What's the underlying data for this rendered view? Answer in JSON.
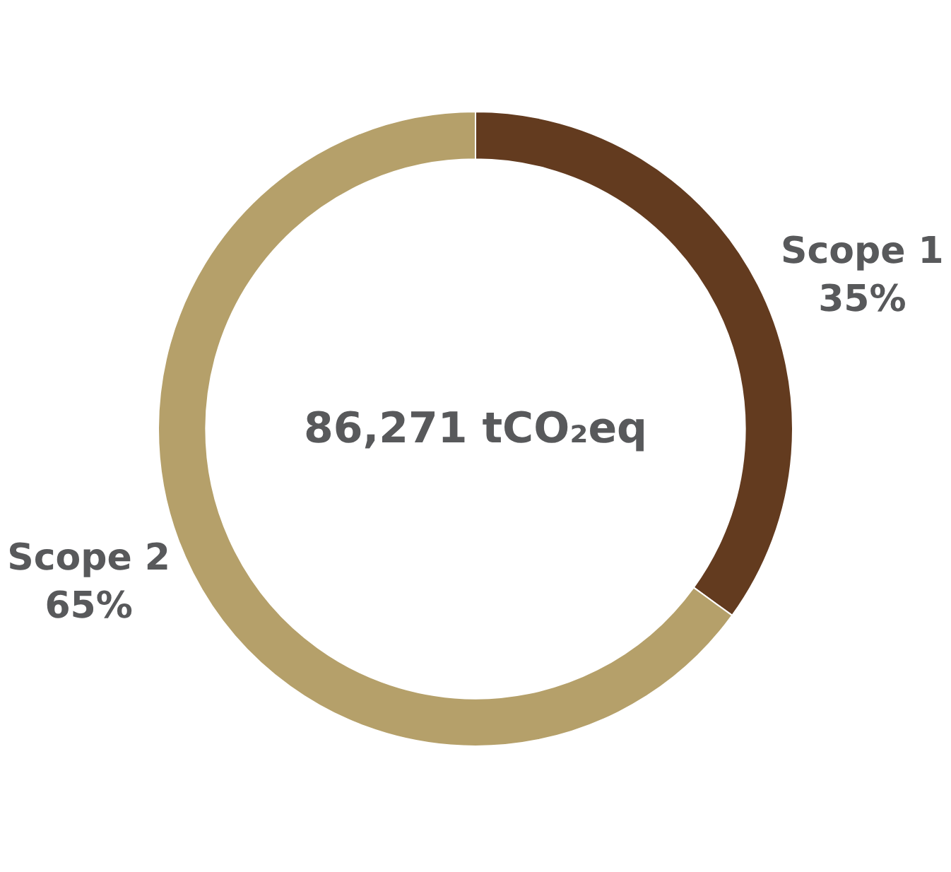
{
  "chart_data": {
    "type": "donut",
    "categories": [
      "Scope 1",
      "Scope 2"
    ],
    "values": [
      35,
      65
    ],
    "value_labels": [
      "35%",
      "65%"
    ],
    "colors": [
      "#633b1f",
      "#b5a06a"
    ],
    "annotations": [
      "86,271 tCO₂eq"
    ],
    "legend": false
  }
}
